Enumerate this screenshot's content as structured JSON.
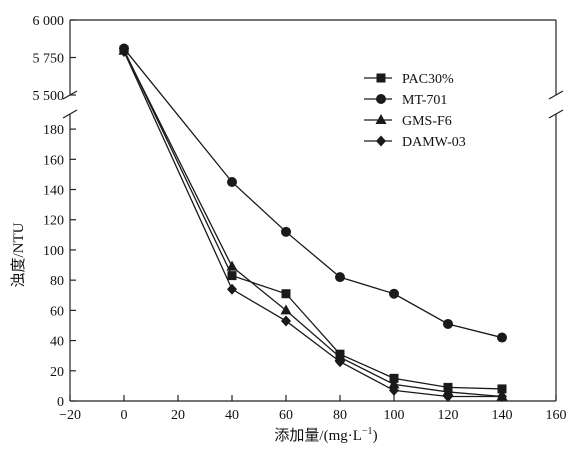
{
  "chart_data": {
    "type": "line",
    "xlabel": "添加量/(mg·L",
    "xlabel_sup": "−1",
    "xlabel_close": ")",
    "ylabel": "浊度/NTU",
    "xlim": [
      -20,
      160
    ],
    "ylim_lower": [
      0,
      190
    ],
    "ylim_upper": [
      5500,
      6000
    ],
    "x_ticks": [
      "−20",
      "0",
      "20",
      "40",
      "60",
      "80",
      "100",
      "120",
      "140",
      "160"
    ],
    "y_ticks_lower": [
      "0",
      "20",
      "40",
      "60",
      "80",
      "100",
      "120",
      "140",
      "160",
      "180"
    ],
    "y_ticks_upper": [
      "5 500",
      "5 750",
      "6 000"
    ],
    "legend_position": "top-right",
    "x": [
      0,
      40,
      60,
      80,
      100,
      120,
      140
    ],
    "series": [
      {
        "name": "PAC30%",
        "marker": "square",
        "values": [
          5800,
          83,
          71,
          31,
          15,
          9,
          8
        ]
      },
      {
        "name": "MT-701",
        "marker": "circle",
        "values": [
          5810,
          145,
          112,
          82,
          71,
          51,
          42
        ]
      },
      {
        "name": "GMS-F6",
        "marker": "triangle",
        "values": [
          5795,
          89,
          60,
          29,
          11,
          6,
          3
        ]
      },
      {
        "name": "DAMW-03",
        "marker": "diamond",
        "values": [
          5790,
          74,
          53,
          26,
          7,
          3,
          3
        ]
      }
    ],
    "line_color": "#1a1a1a"
  }
}
